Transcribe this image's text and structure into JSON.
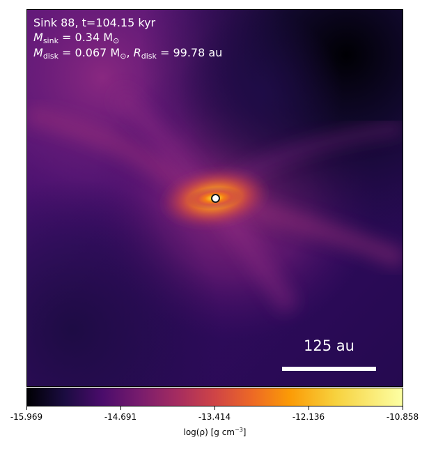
{
  "annotations": {
    "sink_line": "Sink 88, t=104.15 kyr",
    "m_sink_symbol": "M",
    "m_sink_sub": "sink",
    "m_sink_value": " = 0.34 M",
    "m_sink_unit_sub": "⊙",
    "m_disk_symbol": "M",
    "m_disk_sub": "disk",
    "m_disk_value": " = 0.067 M",
    "m_disk_unit_sub": "⊙",
    "r_disk_sep": ", ",
    "r_disk_symbol": "R",
    "r_disk_sub": "disk",
    "r_disk_value": " = 99.78 au"
  },
  "scale_bar": {
    "label": "125 au"
  },
  "colorbar": {
    "ticks": [
      "-15.969",
      "-14.691",
      "-13.414",
      "-12.136",
      "-10.858"
    ],
    "label_prefix": "log(ρ) [g cm",
    "label_exp": "−3",
    "label_suffix": "]",
    "colormap": "inferno"
  },
  "colors": {
    "background_dark": "#000004",
    "outer_purple": "#3b0f70",
    "mid_magenta": "#8c2981",
    "core_orange": "#f57d15",
    "core_yellow": "#fcffa4"
  }
}
